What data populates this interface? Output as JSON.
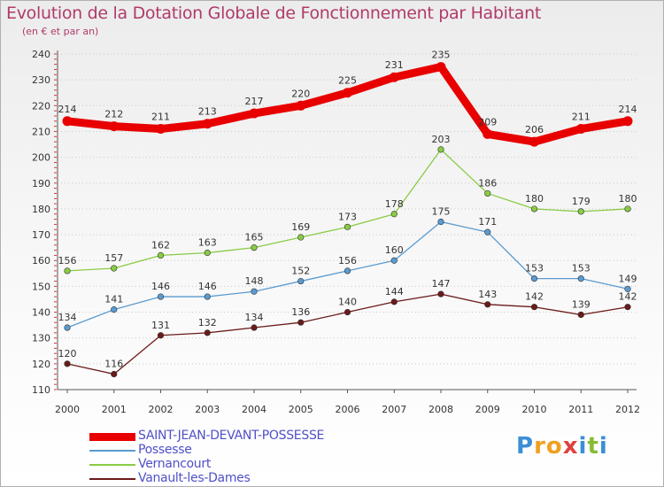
{
  "title": "Evolution de la Dotation Globale de Fonctionnement par Habitant",
  "subtitle": "(en € et par an)",
  "chart_data": {
    "type": "line",
    "title": "Evolution de la Dotation Globale de Fonctionnement par Habitant",
    "ylabel": "(en € et par an)",
    "xlabel": "",
    "ylim": [
      110,
      240
    ],
    "yticks": [
      110,
      120,
      130,
      140,
      150,
      160,
      170,
      180,
      190,
      200,
      210,
      220,
      230,
      240
    ],
    "categories": [
      "2000",
      "2001",
      "2002",
      "2003",
      "2004",
      "2005",
      "2006",
      "2007",
      "2008",
      "2009",
      "2010",
      "2011",
      "2012"
    ],
    "grid": "horizontal dotted",
    "legend_position": "bottom-left",
    "series": [
      {
        "name": "SAINT-JEAN-DEVANT-POSSESSE",
        "color": "#e80000",
        "values": [
          214,
          212,
          211,
          213,
          217,
          220,
          225,
          231,
          235,
          209,
          206,
          211,
          214
        ]
      },
      {
        "name": "Possesse",
        "color": "#5a9bd0",
        "values": [
          134,
          141,
          146,
          146,
          148,
          152,
          156,
          160,
          175,
          171,
          153,
          153,
          149
        ]
      },
      {
        "name": "Vernancourt",
        "color": "#88cc44",
        "values": [
          156,
          157,
          162,
          163,
          165,
          169,
          173,
          178,
          203,
          186,
          180,
          179,
          180
        ]
      },
      {
        "name": "Vanault-les-Dames",
        "color": "#6b1a1a",
        "values": [
          120,
          116,
          131,
          132,
          134,
          136,
          140,
          144,
          147,
          143,
          142,
          139,
          142
        ]
      }
    ]
  },
  "logo": {
    "letters": [
      "P",
      "r",
      "o",
      "x",
      "i",
      "t",
      "i"
    ],
    "colors": [
      "#3a8fd6",
      "#f0a020",
      "#f0a020",
      "#e04040",
      "#3a8fd6",
      "#88bb33",
      "#3a8fd6"
    ]
  }
}
